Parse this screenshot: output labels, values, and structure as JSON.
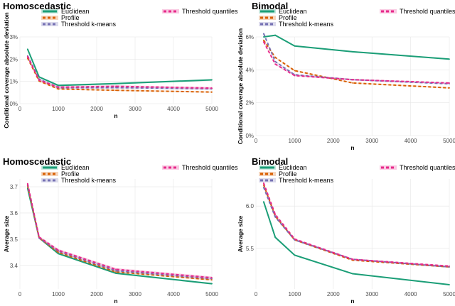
{
  "colors": {
    "euclidean": "#1b9e77",
    "profile": "#d95f02",
    "threshold_kmeans": "#7570b3",
    "threshold_quantiles": "#e7298a"
  },
  "chart_data": [
    {
      "type": "line",
      "title": "Homoscedastic",
      "xlabel": "n",
      "ylabel": "Conditional coverage absolute deviation",
      "xticks": [
        0,
        1000,
        2000,
        3000,
        4000,
        5000
      ],
      "xtick_labels": [
        "0",
        "1000",
        "2000",
        "3000",
        "4000",
        "5000"
      ],
      "xlim": [
        0,
        5000
      ],
      "ylim": [
        0,
        3
      ],
      "yticks": [
        0,
        1,
        2,
        3
      ],
      "ytick_labels": [
        "0%",
        "1%",
        "2%",
        "3%"
      ],
      "legend": [
        "Euclidean",
        "Profile",
        "Threshold k-means",
        "Threshold quantiles"
      ],
      "x": [
        200,
        500,
        1000,
        2500,
        5000
      ],
      "series": [
        {
          "name": "Euclidean",
          "key": "euclidean",
          "values": [
            2.45,
            1.2,
            0.82,
            0.9,
            1.07
          ],
          "band": 0.04,
          "dash": ""
        },
        {
          "name": "Profile",
          "key": "profile",
          "values": [
            2.05,
            1.02,
            0.66,
            0.6,
            0.52
          ],
          "band": 0.03,
          "dash": "4,3"
        },
        {
          "name": "Threshold k-means",
          "key": "threshold_kmeans",
          "values": [
            2.15,
            1.1,
            0.72,
            0.72,
            0.67
          ],
          "band": 0.05,
          "dash": "4,3"
        },
        {
          "name": "Threshold quantiles",
          "key": "threshold_quantiles",
          "values": [
            2.12,
            1.06,
            0.74,
            0.78,
            0.7
          ],
          "band": 0.05,
          "dash": "4,3"
        }
      ]
    },
    {
      "type": "line",
      "title": "Bimodal",
      "xlabel": "n",
      "ylabel": "Conditional coverage absolute deviation",
      "xticks": [
        0,
        1000,
        2000,
        3000,
        4000,
        5000
      ],
      "xtick_labels": [
        "0",
        "1000",
        "2000",
        "3000",
        "4000",
        "5000"
      ],
      "xlim": [
        0,
        5000
      ],
      "ylim": [
        0,
        6
      ],
      "yticks": [
        0,
        2,
        4,
        6
      ],
      "ytick_labels": [
        "0%",
        "2%",
        "4%",
        "6%"
      ],
      "legend": [
        "Euclidean",
        "Profile",
        "Threshold k-means",
        "Threshold quantiles"
      ],
      "x": [
        200,
        500,
        1000,
        2500,
        5000
      ],
      "series": [
        {
          "name": "Euclidean",
          "key": "euclidean",
          "values": [
            6.0,
            6.1,
            5.45,
            5.1,
            4.65
          ],
          "band": 0.04,
          "dash": ""
        },
        {
          "name": "Profile",
          "key": "profile",
          "values": [
            5.8,
            4.75,
            3.95,
            3.2,
            2.9
          ],
          "band": 0.04,
          "dash": "4,3"
        },
        {
          "name": "Threshold k-means",
          "key": "threshold_kmeans",
          "values": [
            6.2,
            4.5,
            3.7,
            3.4,
            3.15
          ],
          "band": 0.05,
          "dash": "4,3"
        },
        {
          "name": "Threshold quantiles",
          "key": "threshold_quantiles",
          "values": [
            5.7,
            4.35,
            3.65,
            3.4,
            3.2
          ],
          "band": 0.05,
          "dash": "4,3"
        }
      ]
    },
    {
      "type": "line",
      "title": "Homoscedastic",
      "xlabel": "n",
      "ylabel": "Average size",
      "xticks": [
        0,
        1000,
        2000,
        3000,
        4000,
        5000
      ],
      "xtick_labels": [
        "0",
        "1000",
        "2000",
        "3000",
        "4000",
        "5000"
      ],
      "xlim": [
        0,
        5000
      ],
      "ylim": [
        3.31,
        3.73
      ],
      "yticks": [
        3.4,
        3.5,
        3.6,
        3.7
      ],
      "ytick_labels": [
        "3.4",
        "3.5",
        "3.6",
        "3.7"
      ],
      "legend": [
        "Euclidean",
        "Profile",
        "Threshold k-means",
        "Threshold quantiles"
      ],
      "x": [
        200,
        500,
        1000,
        2500,
        5000
      ],
      "series": [
        {
          "name": "Euclidean",
          "key": "euclidean",
          "values": [
            3.695,
            3.505,
            3.445,
            3.37,
            3.33
          ],
          "band": 0.003,
          "dash": ""
        },
        {
          "name": "Profile",
          "key": "profile",
          "values": [
            3.705,
            3.505,
            3.45,
            3.375,
            3.345
          ],
          "band": 0.003,
          "dash": "4,3"
        },
        {
          "name": "Threshold k-means",
          "key": "threshold_kmeans",
          "values": [
            3.71,
            3.505,
            3.455,
            3.38,
            3.35
          ],
          "band": 0.005,
          "dash": "4,3"
        },
        {
          "name": "Threshold quantiles",
          "key": "threshold_quantiles",
          "values": [
            3.712,
            3.508,
            3.458,
            3.385,
            3.353
          ],
          "band": 0.005,
          "dash": "4,3"
        }
      ]
    },
    {
      "type": "line",
      "title": "Bimodal",
      "xlabel": "n",
      "ylabel": "Average size",
      "xticks": [
        0,
        1000,
        2000,
        3000,
        4000,
        5000
      ],
      "xtick_labels": [
        "0",
        "1000",
        "2000",
        "3000",
        "4000",
        "5000"
      ],
      "xlim": [
        0,
        5000
      ],
      "ylim": [
        5.02,
        6.32
      ],
      "yticks": [
        5.5,
        6.0
      ],
      "ytick_labels": [
        "5.5",
        "6.0"
      ],
      "legend": [
        "Euclidean",
        "Profile",
        "Threshold k-means",
        "Threshold quantiles"
      ],
      "x": [
        200,
        500,
        1000,
        2500,
        5000
      ],
      "series": [
        {
          "name": "Euclidean",
          "key": "euclidean",
          "values": [
            6.05,
            5.63,
            5.42,
            5.2,
            5.07
          ],
          "band": 0.005,
          "dash": ""
        },
        {
          "name": "Profile",
          "key": "profile",
          "values": [
            6.25,
            5.88,
            5.6,
            5.36,
            5.28
          ],
          "band": 0.005,
          "dash": "4,3"
        },
        {
          "name": "Threshold k-means",
          "key": "threshold_kmeans",
          "values": [
            6.22,
            5.87,
            5.6,
            5.37,
            5.28
          ],
          "band": 0.008,
          "dash": "4,3"
        },
        {
          "name": "Threshold quantiles",
          "key": "threshold_quantiles",
          "values": [
            6.27,
            5.9,
            5.61,
            5.37,
            5.29
          ],
          "band": 0.008,
          "dash": "4,3"
        }
      ]
    }
  ]
}
